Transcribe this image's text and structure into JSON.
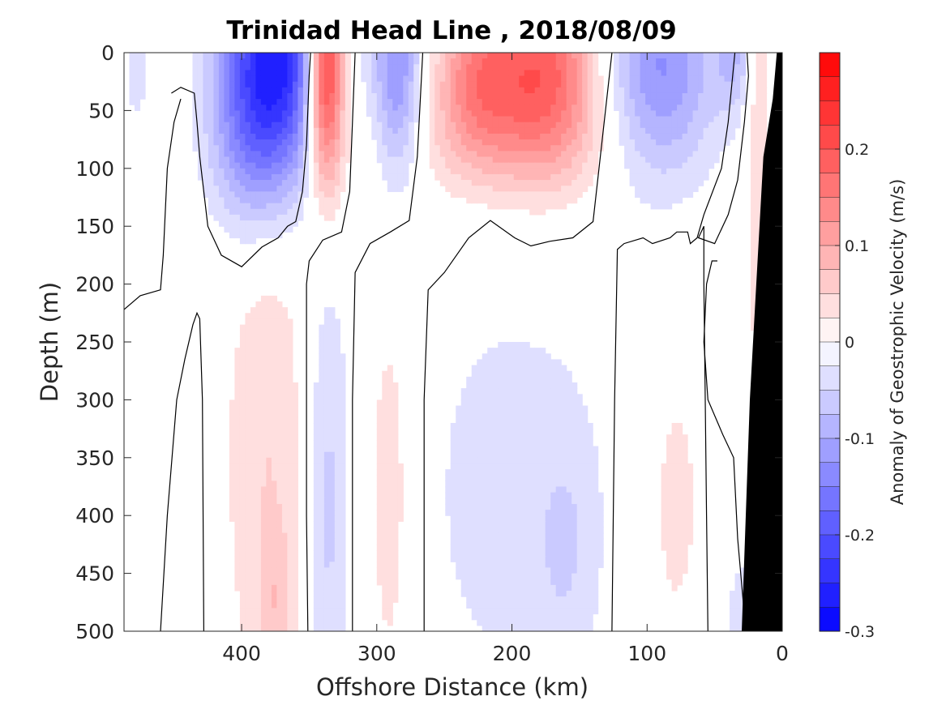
{
  "chart_data": {
    "type": "heatmap",
    "subtype": "filled contour section",
    "title": "Trinidad Head Line , 2018/08/09",
    "xlabel": "Offshore Distance (km)",
    "ylabel": "Depth (m)",
    "colorbar_label": "Anomaly of Geostrophic Velocity (m/s)",
    "xlim": [
      487,
      0
    ],
    "x_reversed": true,
    "ylim": [
      0,
      500
    ],
    "y_reversed": true,
    "x_ticks": [
      400,
      300,
      200,
      100,
      0
    ],
    "y_ticks": [
      0,
      50,
      100,
      150,
      200,
      250,
      300,
      350,
      400,
      450,
      500
    ],
    "color_range": [
      -0.3,
      0.3
    ],
    "color_step": 0.025,
    "colorbar_ticks": [
      0.2,
      0.1,
      0,
      -0.1,
      -0.2,
      -0.3
    ],
    "colormap": {
      "negative": "#0000ff",
      "zero": "#ffffff",
      "positive": "#ff0000"
    },
    "bathymetry_color": "#000000",
    "zero_contour_color": "#000000",
    "features": [
      {
        "x": 478,
        "z": 20,
        "sx": 10,
        "sz": 50,
        "value": -0.03
      },
      {
        "x": 376,
        "z": 10,
        "sx": 28,
        "sz": 75,
        "value": -0.27
      },
      {
        "x": 396,
        "z": 90,
        "sx": 20,
        "sz": 55,
        "value": -0.05
      },
      {
        "x": 338,
        "z": 10,
        "sx": 10,
        "sz": 75,
        "value": 0.3
      },
      {
        "x": 285,
        "z": 20,
        "sx": 13,
        "sz": 70,
        "value": -0.13
      },
      {
        "x": 175,
        "z": 15,
        "sx": 28,
        "sz": 60,
        "value": 0.18
      },
      {
        "x": 225,
        "z": 20,
        "sx": 22,
        "sz": 50,
        "value": 0.13
      },
      {
        "x": 210,
        "z": 80,
        "sx": 72,
        "sz": 40,
        "value": 0.04
      },
      {
        "x": 90,
        "z": 15,
        "sx": 30,
        "sz": 70,
        "value": -0.13
      },
      {
        "x": 35,
        "z": 5,
        "sx": 10,
        "sz": 35,
        "value": -0.06
      },
      {
        "x": 18,
        "z": 60,
        "sx": 7,
        "sz": 170,
        "value": 0.05
      },
      {
        "x": 380,
        "z": 350,
        "sx": 24,
        "sz": 170,
        "value": 0.05
      },
      {
        "x": 374,
        "z": 480,
        "sx": 9,
        "sz": 45,
        "value": 0.04
      },
      {
        "x": 337,
        "z": 390,
        "sx": 12,
        "sz": 160,
        "value": -0.06
      },
      {
        "x": 290,
        "z": 380,
        "sx": 14,
        "sz": 150,
        "value": 0.045
      },
      {
        "x": 200,
        "z": 380,
        "sx": 60,
        "sz": 160,
        "value": -0.035
      },
      {
        "x": 160,
        "z": 430,
        "sx": 16,
        "sz": 70,
        "value": -0.03
      },
      {
        "x": 80,
        "z": 390,
        "sx": 20,
        "sz": 120,
        "value": 0.035
      },
      {
        "x": 30,
        "z": 490,
        "sx": 8,
        "sz": 40,
        "value": -0.05
      }
    ],
    "zero_contours": [
      {
        "x": [
          452,
          445,
          435,
          433,
          431,
          428,
          425,
          415,
          400,
          385,
          373,
          366,
          360,
          355,
          352,
          350,
          349
        ],
        "z": [
          35,
          30,
          35,
          60,
          90,
          120,
          150,
          175,
          185,
          168,
          160,
          150,
          146,
          120,
          80,
          20,
          0
        ]
      },
      {
        "x": [
          487,
          475,
          460,
          458,
          455,
          450,
          445
        ],
        "z": [
          222,
          210,
          205,
          175,
          100,
          60,
          40
        ]
      },
      {
        "x": [
          460,
          455,
          448,
          442,
          436,
          433,
          431,
          429,
          428
        ],
        "z": [
          500,
          400,
          300,
          265,
          235,
          225,
          230,
          300,
          500
        ]
      },
      {
        "x": [
          351,
          352,
          352,
          350,
          340,
          326,
          320,
          318,
          316
        ],
        "z": [
          500,
          400,
          200,
          180,
          162,
          155,
          120,
          60,
          0
        ]
      },
      {
        "x": [
          318,
          318,
          316,
          305,
          290,
          276,
          270,
          266
        ],
        "z": [
          500,
          300,
          190,
          165,
          155,
          145,
          90,
          0
        ]
      },
      {
        "x": [
          265,
          265,
          262,
          250,
          232,
          216,
          198,
          186,
          172,
          155,
          140,
          126
        ],
        "z": [
          500,
          300,
          205,
          190,
          160,
          145,
          160,
          167,
          163,
          160,
          146,
          0
        ]
      },
      {
        "x": [
          126,
          124,
          122,
          117,
          103,
          96,
          83,
          78,
          70,
          68,
          63,
          58,
          45,
          40,
          35
        ],
        "z": [
          500,
          300,
          170,
          165,
          160,
          165,
          160,
          155,
          155,
          165,
          160,
          140,
          100,
          60,
          0
        ]
      },
      {
        "x": [
          55,
          56,
          57,
          58,
          58,
          62,
          50,
          40,
          33,
          28,
          25,
          26
        ],
        "z": [
          500,
          400,
          300,
          200,
          150,
          160,
          165,
          140,
          110,
          60,
          20,
          0
        ]
      },
      {
        "x": [
          27,
          33,
          36,
          44,
          55,
          58,
          56,
          52,
          48
        ],
        "z": [
          500,
          420,
          350,
          330,
          300,
          250,
          200,
          180,
          180
        ]
      }
    ],
    "bathymetry": {
      "x": [
        4,
        0,
        0,
        30,
        24,
        14,
        7
      ],
      "z": [
        0,
        0,
        500,
        500,
        300,
        90,
        40
      ]
    }
  }
}
